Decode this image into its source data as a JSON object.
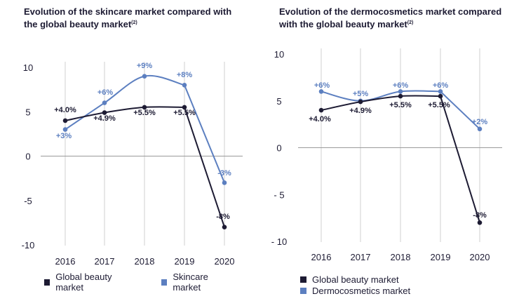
{
  "colors": {
    "global": "#1d1b33",
    "series2": "#5c7fc0",
    "axis": "#9a9a9a"
  },
  "chart_data": [
    {
      "type": "line",
      "title": "Evolution of the skincare market compared with the global beauty market",
      "title_sup": "(2)",
      "categories": [
        "2016",
        "2017",
        "2018",
        "2019",
        "2020"
      ],
      "y_ticks": [
        "10",
        "5",
        "0",
        "-5",
        "-10"
      ],
      "ylim": [
        -10,
        10
      ],
      "y_tick_values": [
        10,
        5,
        0,
        -5,
        -10
      ],
      "series": [
        {
          "name": "Global beauty market",
          "values": [
            4.0,
            4.9,
            5.5,
            5.5,
            -8
          ],
          "labels": [
            "+4.0%",
            "+4.9%",
            "+5.5%",
            "+5.5%",
            "-8%"
          ]
        },
        {
          "name": "Skincare market",
          "values": [
            3,
            6,
            9,
            8,
            -3
          ],
          "labels": [
            "+3%",
            "+6%",
            "+9%",
            "+8%",
            "-3%"
          ]
        }
      ]
    },
    {
      "type": "line",
      "title": "Evolution of the dermocosmetics market compared with the global beauty market",
      "title_sup": "(2)",
      "categories": [
        "2016",
        "2017",
        "2018",
        "2019",
        "2020"
      ],
      "y_ticks": [
        "10",
        "5",
        "0",
        "- 5",
        "- 10"
      ],
      "ylim": [
        -10,
        10
      ],
      "y_tick_values": [
        10,
        5,
        0,
        -5,
        -10
      ],
      "series": [
        {
          "name": "Global beauty market",
          "values": [
            4.0,
            4.9,
            5.5,
            5.5,
            -8
          ],
          "labels": [
            "+4.0%",
            "+4.9%",
            "+5.5%",
            "+5.5%",
            "-8%"
          ]
        },
        {
          "name": "Dermocosmetics market",
          "values": [
            6,
            5,
            6,
            6,
            2
          ],
          "labels": [
            "+6%",
            "+5%",
            "+6%",
            "+6%",
            "+2%"
          ]
        }
      ]
    }
  ]
}
